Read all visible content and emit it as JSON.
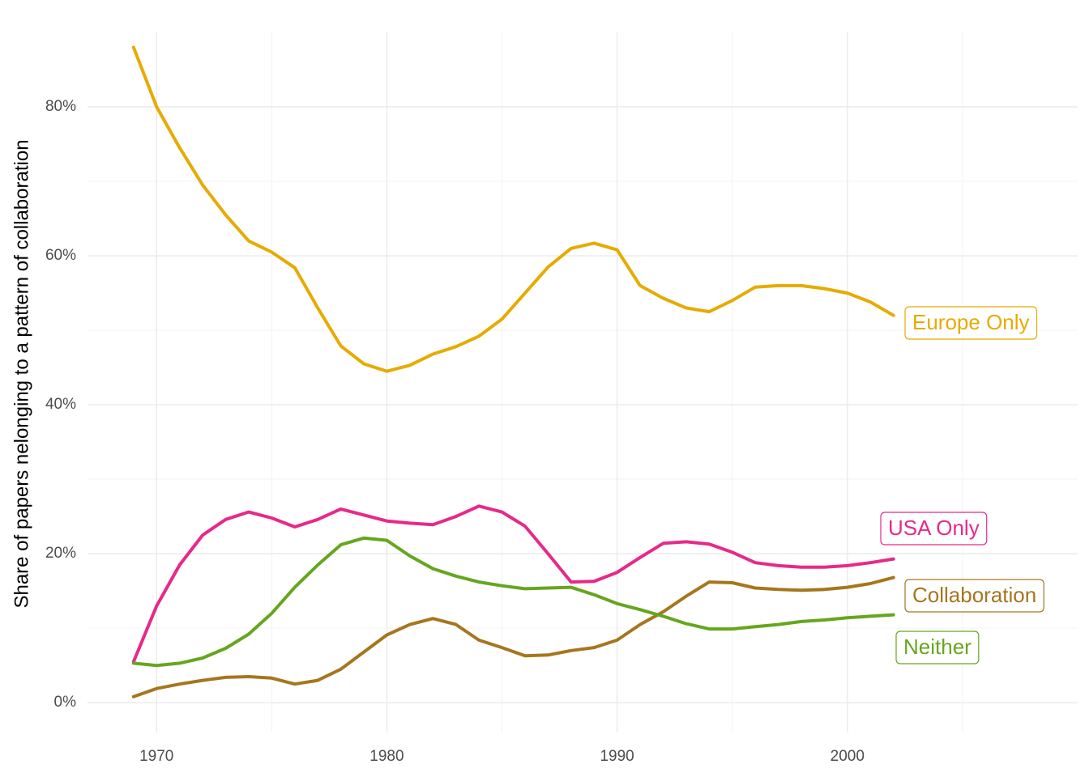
{
  "chart_data": {
    "type": "line",
    "y_label": "Share of papers nelonging to a pattern of collaboration",
    "x": [
      1969,
      1970,
      1971,
      1972,
      1973,
      1974,
      1975,
      1976,
      1977,
      1978,
      1979,
      1980,
      1981,
      1982,
      1983,
      1984,
      1985,
      1986,
      1987,
      1988,
      1989,
      1990,
      1991,
      1992,
      1993,
      1994,
      1995,
      1996,
      1997,
      1998,
      1999,
      2000,
      2001,
      2002
    ],
    "series": [
      {
        "name": "Europe Only",
        "color": "#E6AB02",
        "values": [
          88,
          80,
          74.5,
          69.5,
          65.5,
          62,
          60.5,
          58.4,
          53,
          47.9,
          45.5,
          44.5,
          45.3,
          46.8,
          47.8,
          49.2,
          51.5,
          55,
          58.5,
          61,
          61.7,
          60.8,
          56,
          54.3,
          53,
          52.5,
          54,
          55.8,
          56,
          56,
          55.6,
          55,
          53.8,
          52
        ]
      },
      {
        "name": "USA Only",
        "color": "#E7298A",
        "values": [
          5.5,
          13,
          18.5,
          22.5,
          24.6,
          25.6,
          24.8,
          23.6,
          24.6,
          26,
          25.2,
          24.4,
          24.1,
          23.9,
          25,
          26.4,
          25.6,
          23.7,
          20,
          16.2,
          16.3,
          17.5,
          19.5,
          21.4,
          21.6,
          21.3,
          20.2,
          18.8,
          18.4,
          18.2,
          18.2,
          18.4,
          18.8,
          19.3
        ]
      },
      {
        "name": "Collaboration",
        "color": "#A6761D",
        "values": [
          0.8,
          1.9,
          2.5,
          3,
          3.4,
          3.5,
          3.3,
          2.5,
          3,
          4.5,
          6.8,
          9.1,
          10.5,
          11.3,
          10.5,
          8.4,
          7.4,
          6.3,
          6.4,
          7,
          7.4,
          8.4,
          10.5,
          12.2,
          14.3,
          16.2,
          16.1,
          15.4,
          15.2,
          15.1,
          15.2,
          15.5,
          16,
          16.8
        ]
      },
      {
        "name": "Neither",
        "color": "#66A61E",
        "values": [
          5.3,
          5,
          5.3,
          6,
          7.3,
          9.2,
          12,
          15.5,
          18.5,
          21.2,
          22.1,
          21.8,
          19.7,
          18,
          17,
          16.2,
          15.7,
          15.3,
          15.4,
          15.5,
          14.5,
          13.3,
          12.5,
          11.6,
          10.6,
          9.9,
          9.9,
          10.2,
          10.5,
          10.9,
          11.1,
          11.4,
          11.6,
          11.8
        ]
      }
    ],
    "xlim": [
      1967,
      2010
    ],
    "xticks": [
      1970,
      1980,
      1990,
      2000
    ],
    "xminor": [
      1975,
      1985,
      1995,
      2005
    ],
    "ylim": [
      -4,
      90
    ],
    "yticks": [
      {
        "value": 0,
        "label": "0%"
      },
      {
        "value": 20,
        "label": "20%"
      },
      {
        "value": 40,
        "label": "40%"
      },
      {
        "value": 60,
        "label": "60%"
      },
      {
        "value": 80,
        "label": "80%"
      }
    ],
    "yminor": [
      10,
      30,
      50,
      70
    ],
    "grid": true
  }
}
